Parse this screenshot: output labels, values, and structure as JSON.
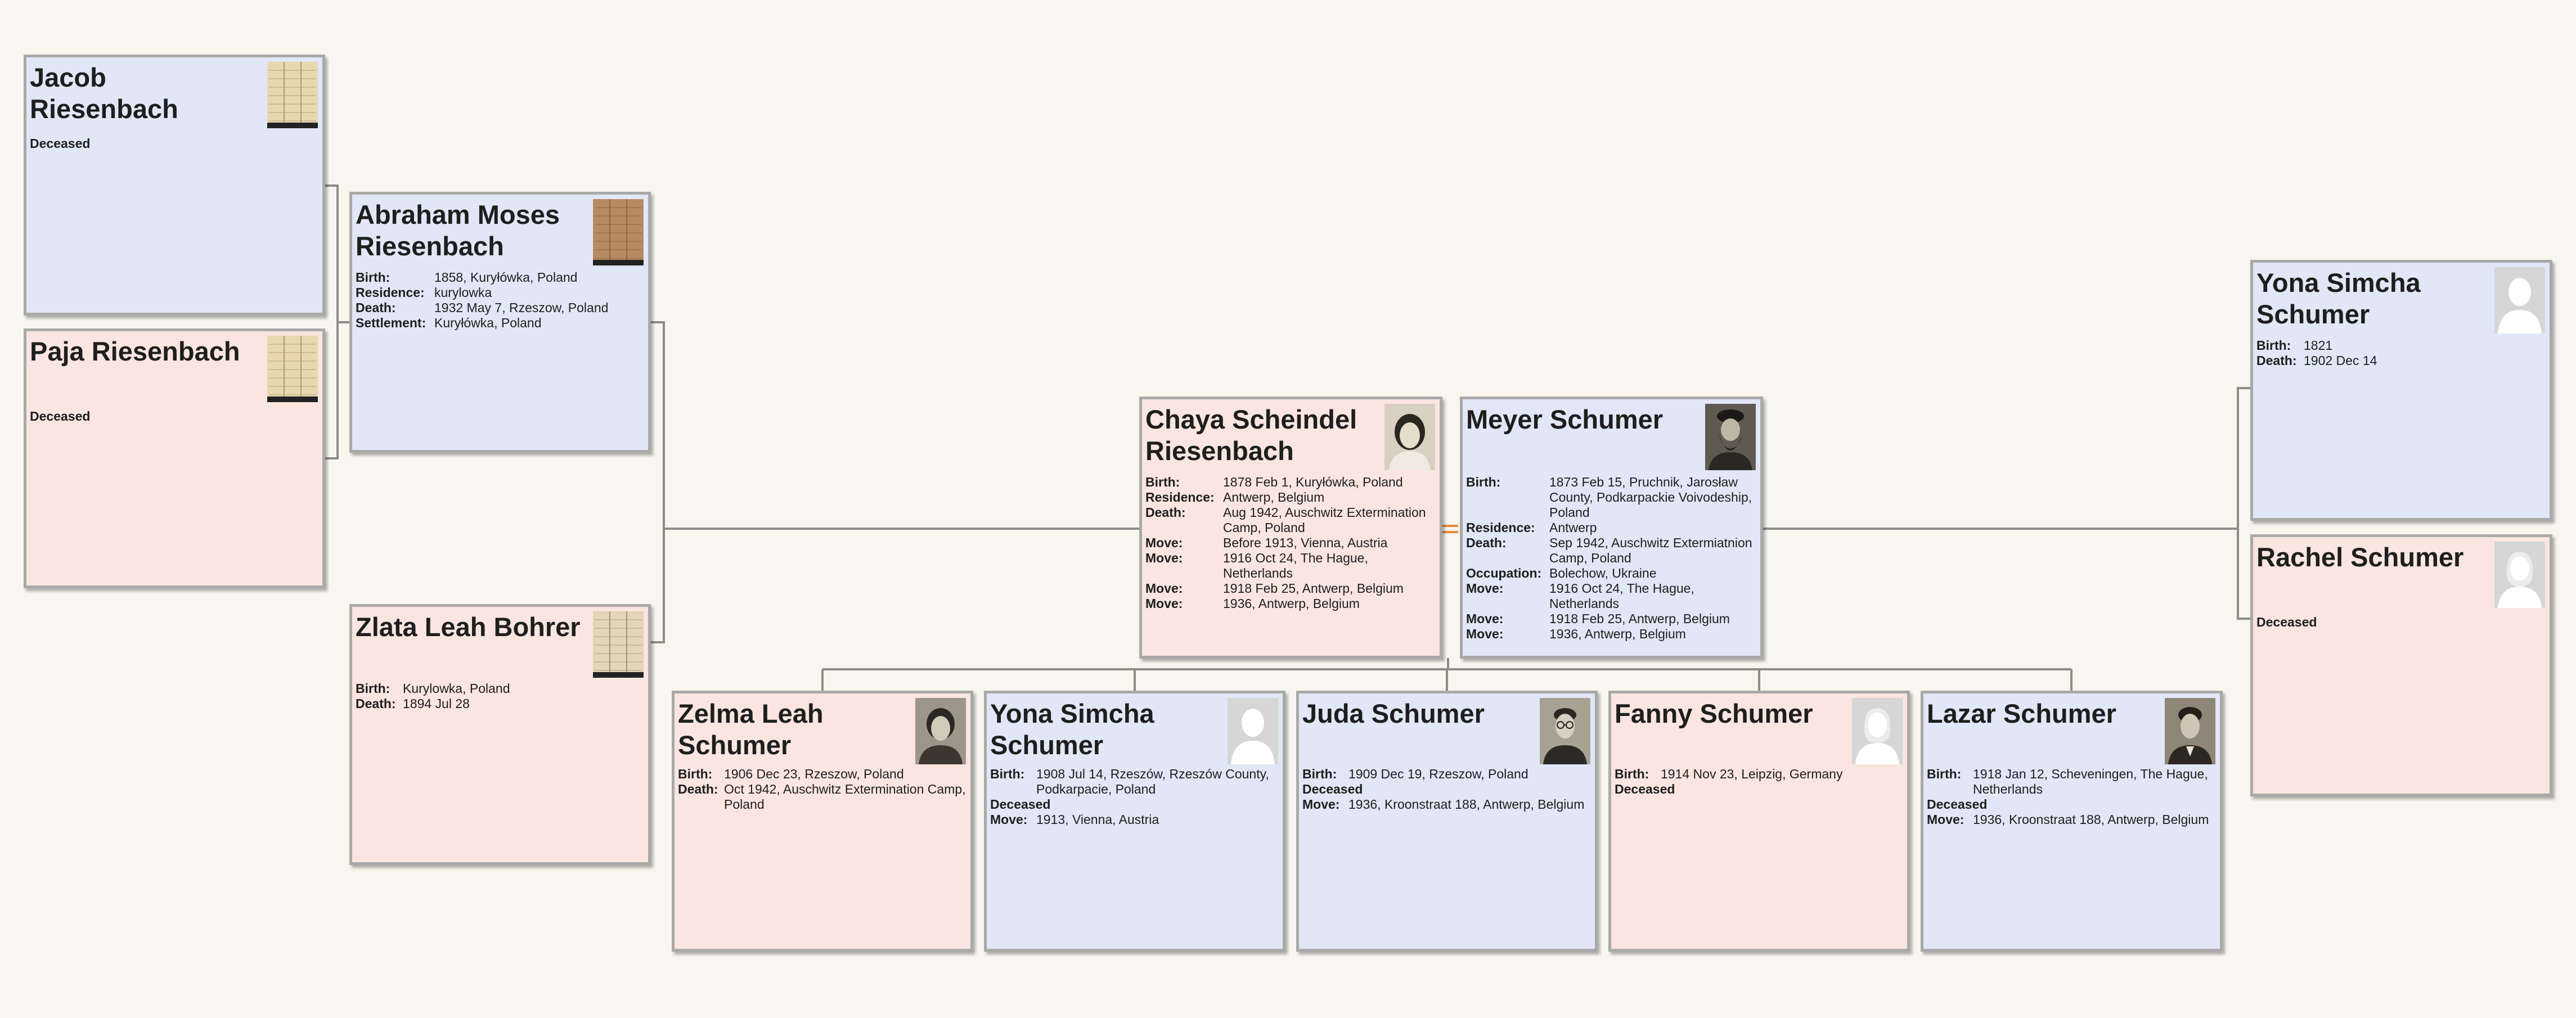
{
  "people": {
    "jacob": {
      "name": "Jacob Riesenbach",
      "status": "Deceased",
      "photo": "document-scan"
    },
    "paja": {
      "name": "Paja Riesenbach",
      "status": "Deceased",
      "photo": "document-scan"
    },
    "abraham": {
      "name": "Abraham Moses Riesenbach",
      "photo": "document-scan-brown",
      "facts": [
        {
          "label": "Birth:",
          "value": "1858, Kuryłówka, Poland"
        },
        {
          "label": "Residence:",
          "value": "kurylowka"
        },
        {
          "label": "Death:",
          "value": "1932 May 7, Rzeszow, Poland"
        },
        {
          "label": "Settlement:",
          "value": "Kuryłówka, Poland"
        }
      ]
    },
    "zlata": {
      "name": "Zlata Leah Bohrer",
      "photo": "document-scan",
      "facts": [
        {
          "label": "Birth:",
          "value": "Kurylowka, Poland"
        },
        {
          "label": "Death:",
          "value": "1894 Jul 28"
        }
      ]
    },
    "chaya": {
      "name": "Chaya Scheindel Riesenbach",
      "photo": "woman-portrait",
      "facts": [
        {
          "label": "Birth:",
          "value": "1878 Feb 1, Kuryłówka, Poland"
        },
        {
          "label": "Residence:",
          "value": "Antwerp, Belgium"
        },
        {
          "label": "Death:",
          "value": "Aug 1942, Auschwitz Extermination Camp, Poland"
        },
        {
          "label": "Move:",
          "value": "Before 1913, Vienna, Austria"
        },
        {
          "label": "Move:",
          "value": "1916 Oct 24, The Hague, Netherlands"
        },
        {
          "label": "Move:",
          "value": "1918 Feb 25, Antwerp, Belgium"
        },
        {
          "label": "Move:",
          "value": "1936, Antwerp, Belgium"
        }
      ]
    },
    "meyer": {
      "name": "Meyer Schumer",
      "photo": "bearded-man-portrait",
      "facts": [
        {
          "label": "Birth:",
          "value": "1873 Feb 15, Pruchnik, Jarosław County, Podkarpackie Voivodeship, Poland"
        },
        {
          "label": "Residence:",
          "value": "Antwerp"
        },
        {
          "label": "Death:",
          "value": "Sep 1942, Auschwitz Extermiatnion Camp, Poland"
        },
        {
          "label": "Occupation:",
          "value": "Bolechow, Ukraine"
        },
        {
          "label": "Move:",
          "value": "1916 Oct 24, The Hague, Netherlands"
        },
        {
          "label": "Move:",
          "value": "1918 Feb 25, Antwerp, Belgium"
        },
        {
          "label": "Move:",
          "value": "1936, Antwerp, Belgium"
        }
      ]
    },
    "yona_sr": {
      "name": "Yona Simcha Schumer",
      "photo": "male-silhouette",
      "facts": [
        {
          "label": "Birth:",
          "value": "1821"
        },
        {
          "label": "Death:",
          "value": "1902 Dec 14"
        }
      ]
    },
    "rachel": {
      "name": "Rachel Schumer",
      "status": "Deceased",
      "photo": "female-silhouette"
    },
    "zelma": {
      "name": "Zelma Leah Schumer",
      "photo": "woman-portrait",
      "facts": [
        {
          "label": "Birth:",
          "value": "1906 Dec 23, Rzeszow, Poland"
        },
        {
          "label": "Death:",
          "value": "Oct 1942, Auschwitz Extermination Camp, Poland"
        }
      ]
    },
    "yona_jr": {
      "name": "Yona Simcha Schumer",
      "photo": "male-silhouette",
      "facts": [
        {
          "label": "Birth:",
          "value": "1908 Jul 14, Rzeszów, Rzeszów County, Podkarpacie, Poland"
        }
      ],
      "status": "Deceased",
      "facts2": [
        {
          "label": "Move:",
          "value": "1913, Vienna, Austria"
        }
      ]
    },
    "juda": {
      "name": "Juda Schumer",
      "photo": "man-portrait",
      "facts": [
        {
          "label": "Birth:",
          "value": "1909 Dec 19, Rzeszow, Poland"
        }
      ],
      "status": "Deceased",
      "facts2": [
        {
          "label": "Move:",
          "value": "1936, Kroonstraat 188, Antwerp, Belgium"
        }
      ]
    },
    "fanny": {
      "name": "Fanny Schumer",
      "photo": "female-silhouette",
      "facts": [
        {
          "label": "Birth:",
          "value": "1914 Nov 23, Leipzig, Germany"
        }
      ],
      "status": "Deceased"
    },
    "lazar": {
      "name": "Lazar Schumer",
      "photo": "man-portrait",
      "facts": [
        {
          "label": "Birth:",
          "value": "1918 Jan 12, Scheveningen, The Hague, Netherlands"
        }
      ],
      "status": "Deceased",
      "facts2": [
        {
          "label": "Move:",
          "value": "1936, Kroonstraat 188, Antwerp, Belgium"
        }
      ]
    }
  },
  "colors": {
    "male_card": "#e2e7f7",
    "female_card": "#fae5e0",
    "card_border": "#a9a9a9",
    "connector": "#8c8c8c",
    "spouse_marker": "#e58a3a",
    "background": "#f8f6ef"
  }
}
